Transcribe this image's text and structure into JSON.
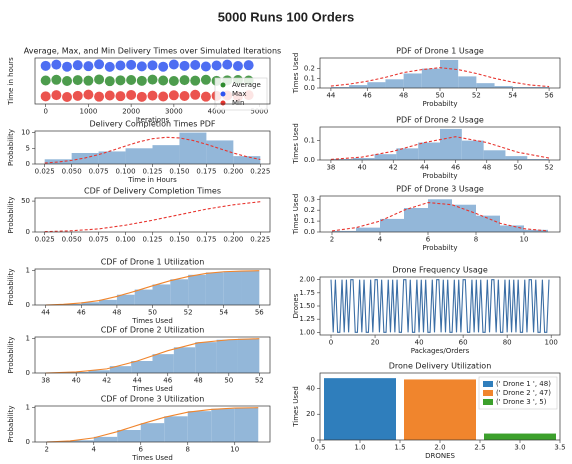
{
  "title": "5000 Runs 100 Orders",
  "chart_data": [
    {
      "type": "scatter",
      "title": "Average, Max, and Min Delivery Times over Simulated Iterations",
      "xlabel": "Iterations",
      "ylabel": "Time in hours",
      "x": [
        0,
        250,
        500,
        750,
        1000,
        1250,
        1500,
        1750,
        2000,
        2250,
        2500,
        2750,
        3000,
        3250,
        3500,
        3750,
        4000,
        4250,
        4500,
        4750
      ],
      "series": [
        {
          "name": "Average",
          "color": "#2e8b2e",
          "values": [
            0.138,
            0.142,
            0.135,
            0.14,
            0.137,
            0.144,
            0.134,
            0.139,
            0.141,
            0.136,
            0.143,
            0.138,
            0.135,
            0.14,
            0.137,
            0.142,
            0.136,
            0.139,
            0.141,
            0.138
          ]
        },
        {
          "name": "Max",
          "color": "#2f55f0",
          "values": [
            0.224,
            0.231,
            0.219,
            0.228,
            0.222,
            0.233,
            0.218,
            0.226,
            0.23,
            0.221,
            0.227,
            0.219,
            0.232,
            0.224,
            0.229,
            0.22,
            0.226,
            0.231,
            0.223,
            0.228
          ]
        },
        {
          "name": "Min",
          "color": "#e8352f",
          "values": [
            0.045,
            0.052,
            0.041,
            0.048,
            0.055,
            0.043,
            0.05,
            0.046,
            0.053,
            0.042,
            0.049,
            0.044,
            0.051,
            0.047,
            0.054,
            0.043,
            0.048,
            0.05,
            0.045,
            0.052
          ]
        }
      ],
      "xlim": [
        -250,
        5250
      ],
      "xticks": [
        0,
        1000,
        2000,
        3000,
        4000,
        5000
      ],
      "ylim": [
        0,
        0.27
      ],
      "legend": "lower right"
    },
    {
      "type": "histogram",
      "title": "Delivery Completion Times PDF",
      "xlabel": "Time in Hours",
      "ylabel": "Probability",
      "bins": [
        0.025,
        0.05,
        0.075,
        0.1,
        0.125,
        0.15,
        0.175,
        0.2,
        0.225
      ],
      "counts": [
        1.5,
        3.5,
        4,
        5,
        6,
        10,
        7.5,
        2.5
      ],
      "color": "#93b7d9",
      "curve": {
        "color": "#e8352f",
        "dashed": true,
        "x": [
          0.025,
          0.0375,
          0.05,
          0.0625,
          0.075,
          0.0875,
          0.1,
          0.1125,
          0.125,
          0.1375,
          0.15,
          0.1625,
          0.175,
          0.1875,
          0.2,
          0.2125,
          0.225
        ],
        "values": [
          0.32,
          0.64,
          1.15,
          1.93,
          2.99,
          4.3,
          5.73,
          7.05,
          8.04,
          8.49,
          8.29,
          7.5,
          6.28,
          4.87,
          3.49,
          2.32,
          1.43
        ]
      },
      "xlim": [
        0.016,
        0.234
      ],
      "xticks": [
        {
          "value": 0.025,
          "label": "0.025"
        },
        {
          "value": 0.05,
          "label": "0.050"
        },
        {
          "value": 0.075,
          "label": "0.075"
        },
        {
          "value": 0.1,
          "label": "0.100"
        },
        {
          "value": 0.125,
          "label": "0.125"
        },
        {
          "value": 0.15,
          "label": "0.150"
        },
        {
          "value": 0.175,
          "label": "0.175"
        },
        {
          "value": 0.2,
          "label": "0.200"
        },
        {
          "value": 0.225,
          "label": "0.225"
        }
      ],
      "ylim": [
        0,
        10.5
      ],
      "yticks": [
        0,
        5,
        10
      ]
    },
    {
      "type": "line",
      "title": "CDF of Delivery Completion Times",
      "color": "#e8352f",
      "dashed": true,
      "x": [
        0.025,
        0.05,
        0.075,
        0.1,
        0.125,
        0.15,
        0.175,
        0.2,
        0.225
      ],
      "values": [
        0.5,
        2,
        5,
        11,
        19,
        28,
        37,
        44,
        49
      ],
      "xlim": [
        0.016,
        0.234
      ],
      "xticks": [
        {
          "value": 0.025,
          "label": "0.025"
        },
        {
          "value": 0.05,
          "label": "0.050"
        },
        {
          "value": 0.075,
          "label": "0.075"
        },
        {
          "value": 0.1,
          "label": "0.100"
        },
        {
          "value": 0.125,
          "label": "0.125"
        },
        {
          "value": 0.15,
          "label": "0.150"
        },
        {
          "value": 0.175,
          "label": "0.175"
        },
        {
          "value": 0.2,
          "label": "0.200"
        },
        {
          "value": 0.225,
          "label": "0.225"
        }
      ],
      "ylim": [
        0,
        55
      ],
      "yticks": [
        0,
        50
      ],
      "ylabel": "Probability"
    },
    {
      "type": "histogram",
      "title": "CDF of Drone 1 Utilization",
      "xlabel": "Times Used",
      "ylabel": "Probability",
      "bins": [
        44,
        45,
        46,
        47,
        48,
        49,
        50,
        51,
        52,
        53,
        54,
        55,
        56
      ],
      "counts": [
        0.01,
        0.03,
        0.08,
        0.15,
        0.3,
        0.45,
        0.6,
        0.75,
        0.88,
        0.95,
        0.98,
        1.0
      ],
      "color": "#93b7d9",
      "curve": {
        "color": "#f0852d",
        "dashed": false,
        "x": [
          44,
          45,
          46,
          47,
          48,
          49,
          50,
          51,
          52,
          53,
          54,
          55,
          56
        ],
        "values": [
          0,
          0.02,
          0.06,
          0.13,
          0.25,
          0.4,
          0.56,
          0.71,
          0.83,
          0.92,
          0.97,
          0.99,
          1.0
        ]
      },
      "xlim": [
        43.4,
        56.6
      ],
      "xticks": [
        44,
        46,
        48,
        50,
        52,
        54,
        56
      ],
      "ylim": [
        0,
        1.05
      ],
      "yticks": [
        0,
        1
      ]
    },
    {
      "type": "histogram",
      "title": "CDF of Drone 2 Utilization",
      "xlabel": "Times Used",
      "ylabel": "Probability",
      "bins": [
        38,
        39.4,
        40.8,
        42.2,
        43.6,
        45,
        46.4,
        47.8,
        49.2,
        50.6,
        52
      ],
      "counts": [
        0.01,
        0.03,
        0.08,
        0.2,
        0.35,
        0.55,
        0.75,
        0.9,
        0.97,
        1.0
      ],
      "color": "#93b7d9",
      "curve": {
        "color": "#f0852d",
        "dashed": false,
        "x": [
          38,
          40,
          42,
          44,
          46,
          48,
          50,
          52
        ],
        "values": [
          0,
          0.03,
          0.12,
          0.35,
          0.65,
          0.88,
          0.97,
          1.0
        ]
      },
      "xlim": [
        37.3,
        52.7
      ],
      "xticks": [
        38,
        40,
        42,
        44,
        46,
        48,
        50,
        52
      ],
      "ylim": [
        0,
        1.05
      ],
      "yticks": [
        0,
        1
      ]
    },
    {
      "type": "histogram",
      "title": "CDF of Drone 3 Utilization",
      "xlabel": "Times Used",
      "ylabel": "Probability",
      "bins": [
        2,
        3,
        4,
        5,
        6,
        7,
        8,
        9,
        10,
        11
      ],
      "counts": [
        0.02,
        0.05,
        0.15,
        0.35,
        0.55,
        0.75,
        0.9,
        0.97,
        1.0
      ],
      "color": "#93b7d9",
      "curve": {
        "color": "#f0852d",
        "dashed": false,
        "x": [
          2,
          3,
          4,
          5,
          6,
          7,
          8,
          9,
          10,
          11
        ],
        "values": [
          0,
          0.03,
          0.12,
          0.3,
          0.52,
          0.72,
          0.87,
          0.95,
          0.99,
          1.0
        ]
      },
      "xlim": [
        1.5,
        11.5
      ],
      "xticks": [
        2,
        4,
        6,
        8,
        10
      ],
      "ylim": [
        0,
        1.05
      ],
      "yticks": [
        0,
        1
      ]
    },
    {
      "type": "histogram",
      "title": "PDF of Drone 1 Usage",
      "xlabel": "Probabilty",
      "ylabel": "Times Used",
      "bins": [
        44,
        45,
        46,
        47,
        48,
        49,
        50,
        51,
        52,
        53,
        54,
        55,
        56
      ],
      "counts": [
        0.01,
        0.03,
        0.06,
        0.09,
        0.15,
        0.2,
        0.29,
        0.12,
        0.05,
        0.02,
        0.01,
        0.01
      ],
      "color": "#93b7d9",
      "curve": {
        "color": "#e8352f",
        "dashed": true,
        "x": [
          44,
          45,
          46,
          47,
          48,
          49,
          50,
          51,
          52,
          53,
          54,
          55,
          56
        ],
        "values": [
          0.02,
          0.04,
          0.07,
          0.11,
          0.16,
          0.19,
          0.21,
          0.19,
          0.15,
          0.1,
          0.06,
          0.03,
          0.015
        ]
      },
      "xlim": [
        43.4,
        56.6
      ],
      "xticks": [
        44,
        46,
        48,
        50,
        52,
        54,
        56
      ],
      "ylim": [
        0,
        0.31
      ],
      "yticks": [
        {
          "value": 0,
          "label": "0.0"
        },
        {
          "value": 0.1,
          "label": "0.1"
        },
        {
          "value": 0.2,
          "label": "0.2"
        }
      ]
    },
    {
      "type": "histogram",
      "title": "PDF of Drone 2 Usage",
      "xlabel": "Probabilty",
      "ylabel": "Times Used",
      "bins": [
        38,
        39.4,
        40.8,
        42.2,
        43.6,
        45,
        46.4,
        47.8,
        49.2,
        50.6,
        52
      ],
      "counts": [
        0.005,
        0.01,
        0.03,
        0.06,
        0.09,
        0.16,
        0.1,
        0.05,
        0.02,
        0.005
      ],
      "color": "#93b7d9",
      "curve": {
        "color": "#e8352f",
        "dashed": true,
        "x": [
          38,
          40,
          42,
          44,
          46,
          48,
          50,
          52
        ],
        "values": [
          0.003,
          0.015,
          0.045,
          0.09,
          0.12,
          0.09,
          0.04,
          0.01
        ]
      },
      "xlim": [
        37.3,
        52.7
      ],
      "xticks": [
        38,
        40,
        42,
        44,
        46,
        48,
        50,
        52
      ],
      "ylim": [
        0,
        0.17
      ],
      "yticks": [
        {
          "value": 0,
          "label": "0.0"
        },
        {
          "value": 0.1,
          "label": "0.1"
        }
      ]
    },
    {
      "type": "histogram",
      "title": "PDF of Drone 3 Usage",
      "xlabel": "Probabilty",
      "ylabel": "Times Used",
      "bins": [
        2,
        3,
        4,
        5,
        6,
        7,
        8,
        9,
        10,
        11
      ],
      "counts": [
        0.01,
        0.04,
        0.12,
        0.22,
        0.3,
        0.25,
        0.15,
        0.06,
        0.02
      ],
      "color": "#93b7d9",
      "curve": {
        "color": "#e8352f",
        "dashed": true,
        "x": [
          2,
          3,
          4,
          5,
          6,
          7,
          8,
          9,
          10,
          11
        ],
        "values": [
          0.01,
          0.04,
          0.1,
          0.2,
          0.27,
          0.25,
          0.17,
          0.08,
          0.03,
          0.01
        ]
      },
      "xlim": [
        1.5,
        11.5
      ],
      "xticks": [
        2,
        4,
        6,
        8,
        10
      ],
      "ylim": [
        0,
        0.33
      ],
      "yticks": [
        {
          "value": 0,
          "label": "0.0"
        },
        {
          "value": 0.1,
          "label": "0.1"
        },
        {
          "value": 0.2,
          "label": "0.2"
        },
        {
          "value": 0.3,
          "label": "0.3"
        }
      ]
    },
    {
      "type": "line",
      "title": "Drone Frequency Usage",
      "xlabel": "Packages/Orders",
      "ylabel": "Drones",
      "color": "#3b6ea5",
      "dashed": false,
      "x": [
        0,
        1,
        2,
        3,
        4,
        5,
        6,
        7,
        8,
        9,
        10,
        11,
        12,
        13,
        14,
        15,
        16,
        17,
        18,
        19,
        20,
        21,
        22,
        23,
        24,
        25,
        26,
        27,
        28,
        29,
        30,
        31,
        32,
        33,
        34,
        35,
        36,
        37,
        38,
        39,
        40,
        41,
        42,
        43,
        44,
        45,
        46,
        47,
        48,
        49,
        50,
        51,
        52,
        53,
        54,
        55,
        56,
        57,
        58,
        59,
        60,
        61,
        62,
        63,
        64,
        65,
        66,
        67,
        68,
        69,
        70,
        71,
        72,
        73,
        74,
        75,
        76,
        77,
        78,
        79,
        80,
        81,
        82,
        83,
        84,
        85,
        86,
        87,
        88,
        89,
        90,
        91,
        92,
        93,
        94,
        95,
        96,
        97,
        98,
        99
      ],
      "values": [
        2,
        1,
        2,
        1,
        1,
        2,
        1,
        2,
        1,
        2,
        2,
        1,
        1,
        2,
        1,
        2,
        1,
        1,
        2,
        1,
        2,
        2,
        1,
        2,
        1,
        1,
        2,
        1,
        2,
        1,
        2,
        1,
        1,
        2,
        2,
        1,
        2,
        1,
        1,
        2,
        1,
        2,
        1,
        2,
        1,
        1,
        2,
        1,
        2,
        2,
        1,
        2,
        1,
        2,
        1,
        1,
        2,
        1,
        2,
        1,
        2,
        2,
        1,
        1,
        2,
        1,
        2,
        1,
        2,
        1,
        1,
        2,
        1,
        2,
        2,
        1,
        2,
        1,
        1,
        2,
        1,
        2,
        1,
        2,
        1,
        2,
        1,
        1,
        2,
        1,
        2,
        2,
        1,
        2,
        1,
        1,
        2,
        1,
        1,
        2
      ],
      "xlim": [
        -5,
        104
      ],
      "xticks": [
        0,
        20,
        40,
        60,
        80,
        100
      ],
      "ylim": [
        0.95,
        2.05
      ],
      "yticks": [
        {
          "value": 1,
          "label": "1.00"
        },
        {
          "value": 1.25,
          "label": "1.25"
        },
        {
          "value": 1.5,
          "label": "1.50"
        },
        {
          "value": 1.75,
          "label": "1.75"
        },
        {
          "value": 2,
          "label": "2.00"
        }
      ]
    },
    {
      "type": "bar",
      "title": "Drone Delivery Utilization",
      "xlabel": "DRONES",
      "ylabel": "Times Used",
      "series": [
        {
          "name": "(' Drone 1 ', 48)",
          "color": "#2f7ebc",
          "x": [
            1
          ],
          "values": [
            48
          ]
        },
        {
          "name": "(' Drone 2 ', 47)",
          "color": "#f0852d",
          "x": [
            2
          ],
          "values": [
            47
          ]
        },
        {
          "name": "(' Drone 3 ', 5)",
          "color": "#3ca02c",
          "x": [
            3
          ],
          "values": [
            5
          ]
        }
      ],
      "xlim": [
        0.5,
        3.5
      ],
      "xticks": [
        {
          "value": 0.5,
          "label": "0.5"
        },
        {
          "value": 1,
          "label": "1.0"
        },
        {
          "value": 1.5,
          "label": "1.5"
        },
        {
          "value": 2,
          "label": "2.0"
        },
        {
          "value": 2.5,
          "label": "2.5"
        },
        {
          "value": 3,
          "label": "3.0"
        },
        {
          "value": 3.5,
          "label": "3.5"
        }
      ],
      "ylim": [
        0,
        52
      ],
      "yticks": [
        0,
        20,
        40
      ],
      "legend": "upper right"
    }
  ]
}
